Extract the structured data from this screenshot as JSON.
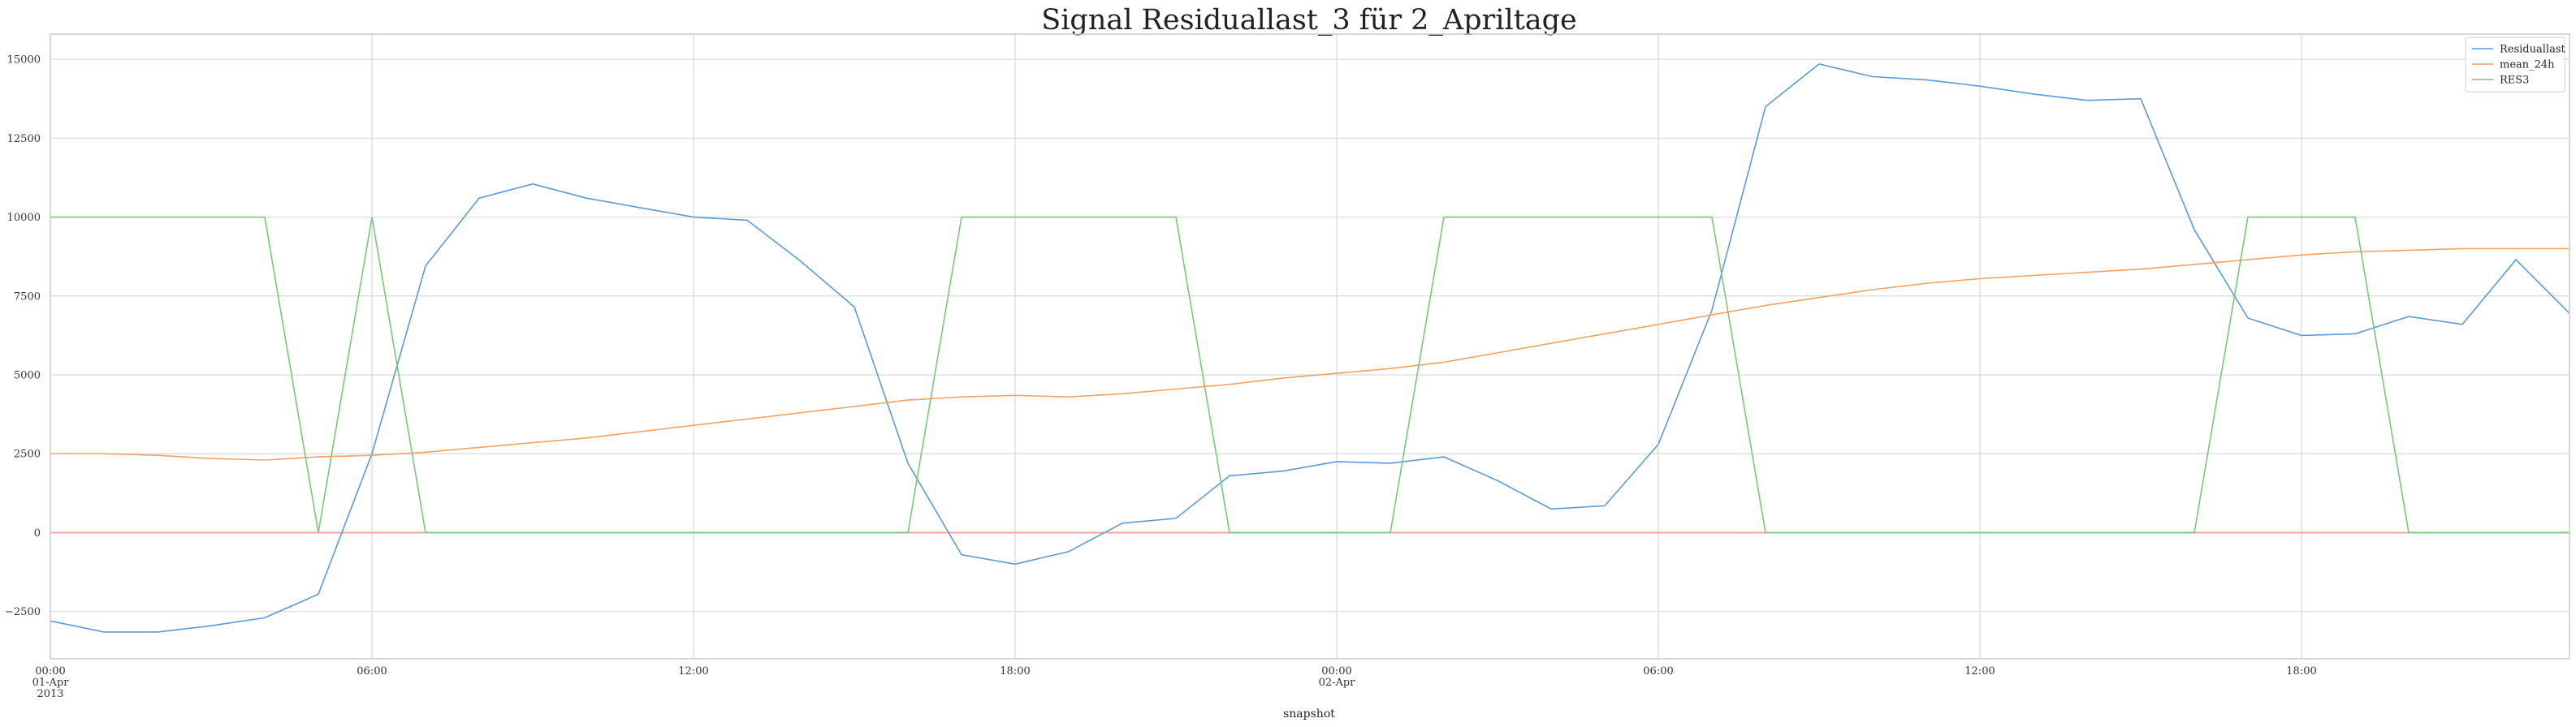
{
  "chart_data": {
    "type": "line",
    "title": "Signal Residuallast_3 für 2_Apriltage",
    "xlabel": "snapshot",
    "ylabel": "",
    "ylim": [
      -4000,
      15800
    ],
    "xlim": [
      0,
      47
    ],
    "grid": true,
    "legend_position": "top-right",
    "x_unit": "hours from 2013-04-01 00:00",
    "x_ticks": [
      {
        "x": 0,
        "lines": [
          "00:00",
          "01-Apr",
          "2013"
        ]
      },
      {
        "x": 6,
        "lines": [
          "06:00"
        ]
      },
      {
        "x": 12,
        "lines": [
          "12:00"
        ]
      },
      {
        "x": 18,
        "lines": [
          "18:00"
        ]
      },
      {
        "x": 24,
        "lines": [
          "00:00",
          "02-Apr"
        ]
      },
      {
        "x": 30,
        "lines": [
          "06:00"
        ]
      },
      {
        "x": 36,
        "lines": [
          "12:00"
        ]
      },
      {
        "x": 42,
        "lines": [
          "18:00"
        ]
      }
    ],
    "y_ticks": [
      -2500,
      0,
      2500,
      5000,
      7500,
      10000,
      12500,
      15000
    ],
    "y_tick_labels": [
      "−2500",
      "0",
      "2500",
      "5000",
      "7500",
      "10000",
      "12500",
      "15000"
    ],
    "series": [
      {
        "name": "Residuallast",
        "color": "#5b9bd5",
        "values": [
          -2800,
          -3150,
          -3150,
          -2950,
          -2700,
          -1950,
          2500,
          8450,
          10600,
          11050,
          10600,
          10300,
          10000,
          9900,
          8600,
          7150,
          2200,
          -700,
          -1000,
          -600,
          300,
          450,
          1800,
          1950,
          2250,
          2200,
          2400,
          1650,
          750,
          850,
          2800,
          7050,
          13500,
          14850,
          14450,
          14350,
          14150,
          13900,
          13700,
          13750,
          9600,
          6800,
          6250,
          6300,
          6850,
          6600,
          8650,
          6950
        ]
      },
      {
        "name": "mean_24h",
        "color": "#f4a261",
        "values": [
          2500,
          2500,
          2450,
          2350,
          2300,
          2400,
          2450,
          2550,
          2700,
          2850,
          3000,
          3200,
          3400,
          3600,
          3800,
          4000,
          4200,
          4300,
          4350,
          4300,
          4400,
          4550,
          4700,
          4900,
          5050,
          5200,
          5400,
          5700,
          6000,
          6300,
          6600,
          6900,
          7200,
          7450,
          7700,
          7900,
          8050,
          8150,
          8250,
          8350,
          8500,
          8650,
          8800,
          8900,
          8950,
          9000,
          9000,
          9000
        ]
      },
      {
        "name": "RES3",
        "color": "#7ac77a",
        "values": [
          10000,
          10000,
          10000,
          10000,
          10000,
          0,
          10000,
          0,
          0,
          0,
          0,
          0,
          0,
          0,
          0,
          0,
          0,
          10000,
          10000,
          10000,
          10000,
          10000,
          0,
          0,
          0,
          0,
          10000,
          10000,
          10000,
          10000,
          10000,
          10000,
          0,
          0,
          0,
          0,
          0,
          0,
          0,
          0,
          0,
          10000,
          10000,
          10000,
          0,
          0,
          0,
          0
        ]
      }
    ],
    "zero_line_color": "#f4a0a0",
    "grid_color": "#d9d9d9",
    "axis_color": "#cccccc"
  }
}
